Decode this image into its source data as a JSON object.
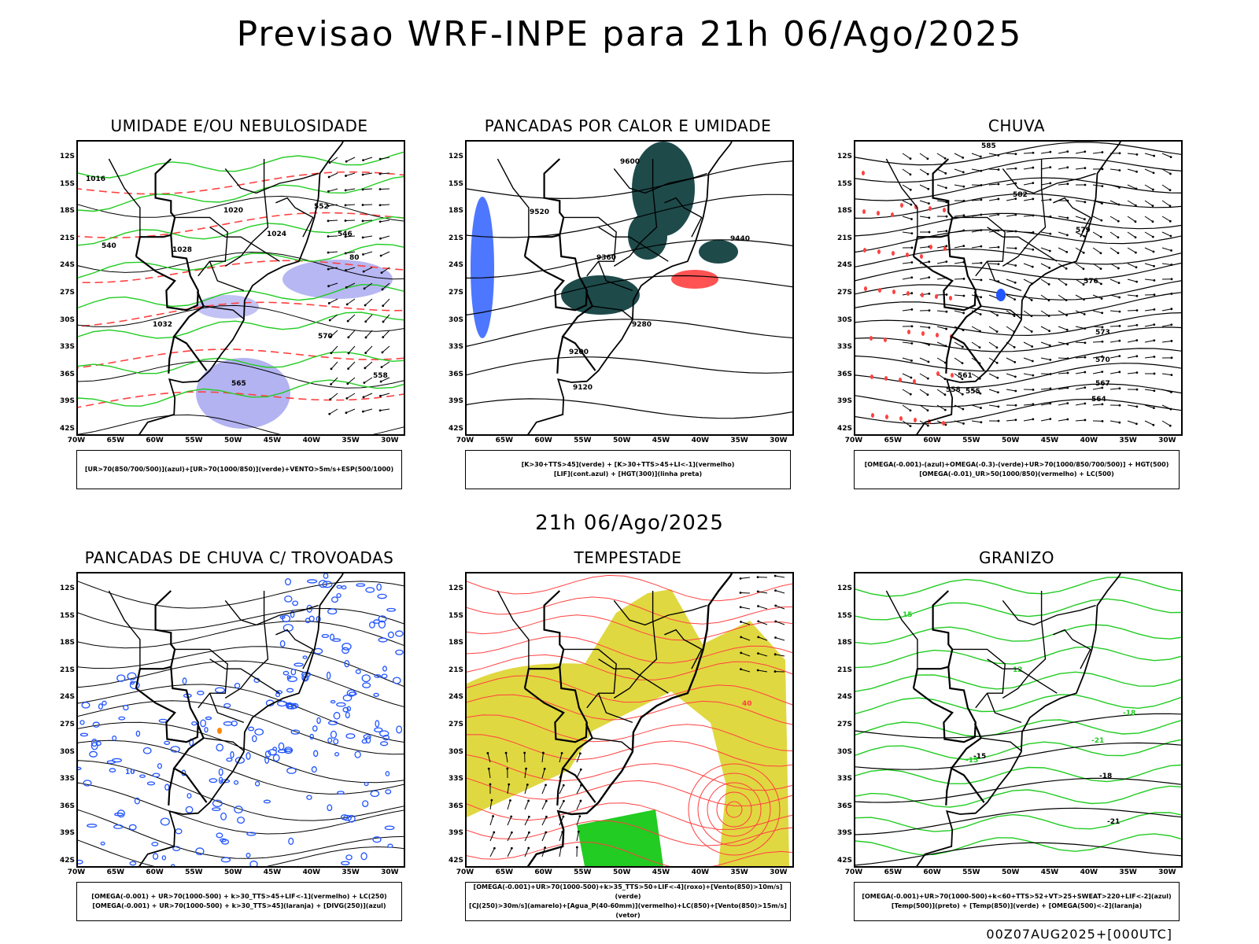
{
  "page": {
    "title": "Previsao WRF-INPE  para 21h 06/Ago/2025",
    "subtitle": "21h 06/Ago/2025",
    "footer": "00Z07AUG2025+[000UTC]"
  },
  "axes": {
    "lat_labels": [
      "12S",
      "15S",
      "18S",
      "21S",
      "24S",
      "27S",
      "30S",
      "33S",
      "36S",
      "39S",
      "42S"
    ],
    "lon_labels": [
      "70W",
      "65W",
      "60W",
      "55W",
      "50W",
      "45W",
      "40W",
      "35W",
      "30W"
    ]
  },
  "colors": {
    "green": "#22cc22",
    "red": "#ff4040",
    "blue": "#2255ff",
    "dark_teal": "#1e4a4a",
    "lavender": "#9999ee",
    "yellow": "#e0d840",
    "black": "#000000"
  },
  "panels": [
    {
      "title": "UMIDADE E/OU NEBULOSIDADE",
      "legend": [
        "[UR>70(850/700/500)](azul)+[UR>70(1000/850)](verde)+VENTO>5m/s+ESP(500/1000)"
      ],
      "contour_labels": [
        "1016",
        "1020",
        "1024",
        "1028",
        "1032",
        "570",
        "565",
        "558",
        "552",
        "546",
        "540",
        "80"
      ]
    },
    {
      "title": "PANCADAS POR CALOR E UMIDADE",
      "legend": [
        "[K>30+TTS>45](verde) + [K>30+TTS>45+LI<-1](vermelho)",
        "[LIF](cont.azul) + [HGT(300)](linha preta)"
      ],
      "contour_labels": [
        "9600",
        "9520",
        "9440",
        "9360",
        "9280",
        "9200",
        "9120"
      ]
    },
    {
      "title": "CHUVA",
      "legend": [
        "[OMEGA(-0.001)-(azul)+OMEGA(-0.3)-(verde)+UR>70(1000/850/700/500)] + HGT(500)",
        "[OMEGA(-0.01)_UR>50(1000/850)(vermelho) + LC(500)"
      ],
      "contour_labels": [
        "585",
        "582",
        "579",
        "576",
        "573",
        "570",
        "567",
        "564",
        "561",
        "558",
        "555"
      ]
    },
    {
      "title": "PANCADAS DE CHUVA C/ TROVOADAS",
      "legend": [
        "[OMEGA(-0.001) + UR>70(1000-500) + k>30_TTS>45+LIF<-1](vermelho) + LC(250)",
        "[OMEGA(-0.001) + UR>70(1000-500) + k>30_TTS>45](laranja) + [DIVG(250)](azul)"
      ],
      "contour_labels": [
        "10"
      ]
    },
    {
      "title": "TEMPESTADE",
      "legend": [
        "[OMEGA(-0.001)+UR>70(1000-500)+k>35_TTS>50+LIF<-4](roxo)+[Vento(850)>10m/s](verde)",
        "[CJ(250)>30m/s](amarelo)+[Agua_P(40-60mm)](vermelho)+LC(850)+[Vento(850)>15m/s](vetor)"
      ],
      "contour_labels": [
        "40"
      ]
    },
    {
      "title": "GRANIZO",
      "legend": [
        "[OMEGA(-0.001)+UR>70(1000-500)+k<60+TTS>52+VT>25+SWEAT>220+LIF<-2](azul)",
        "[Temp(500)](preto) + [Temp(850)](verde) + [OMEGA(500)<-2](laranja)"
      ],
      "contour_labels": [
        "15",
        "12",
        "-18",
        "-21",
        "-15"
      ]
    }
  ]
}
